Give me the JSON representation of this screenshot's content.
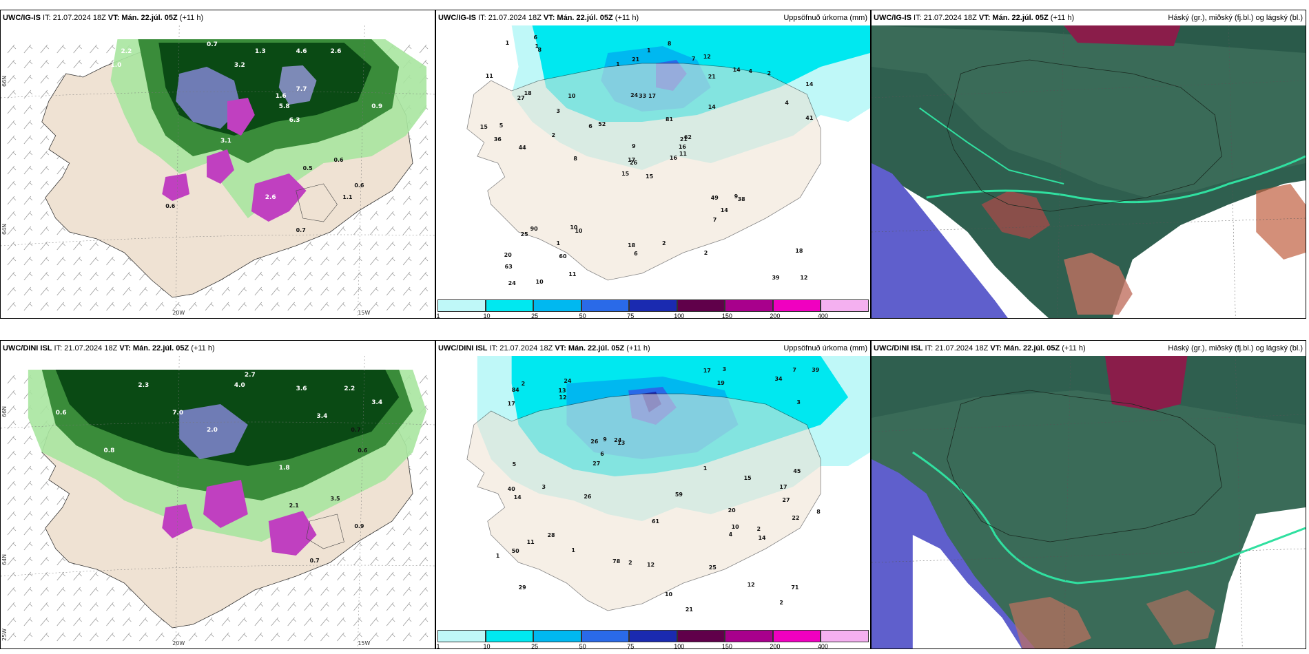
{
  "rows": [
    {
      "model": "UWC/IG-IS",
      "left": {
        "prefix": "UWC/IG-IS",
        "it": " IT: 21.07.2024 18Z ",
        "vt": "VT: Mán. 22.júl. 05Z",
        "lead": " (+11 h)"
      },
      "mid": {
        "prefix": "UWC/IG-IS",
        "it": " IT: 21.07.2024 18Z ",
        "vt": "VT: Mán. 22.júl. 05Z",
        "lead": " (+11 h)",
        "right": "Uppsöfnuð úrkoma (mm)"
      },
      "right": {
        "prefix": "UWC/IG-IS",
        "it": " IT: 21.07.2024 18Z ",
        "vt": "VT: Mán. 22.júl. 05Z",
        "lead": " (+11 h)",
        "right": "Háský (gr.), miðský (fj.bl.) og lágský (bl.)"
      }
    },
    {
      "model": "UWC/DINI ISL",
      "left": {
        "prefix": "UWC/DINI ISL",
        "it": " IT: 21.07.2024 18Z ",
        "vt": "VT: Mán. 22.júl. 05Z",
        "lead": " (+11 h)"
      },
      "mid": {
        "prefix": "UWC/DINI ISL",
        "it": " IT: 21.07.2024 18Z ",
        "vt": "VT: Mán. 22.júl. 05Z",
        "lead": " (+11 h)",
        "right": "Uppsöfnuð úrkoma (mm)"
      },
      "right": {
        "prefix": "UWC/DINI ISL",
        "it": " IT: 21.07.2024 18Z ",
        "vt": "VT: Mán. 22.júl. 05Z",
        "lead": " (+11 h)",
        "right": "Háský (gr.), miðský (fj.bl.) og lágský (bl.)"
      }
    }
  ],
  "axes": {
    "lon1": "20W",
    "lon2": "15W",
    "lat1": "66N",
    "lat2": "64N",
    "lat3": "25W"
  },
  "colorbar": {
    "ticks": [
      "1",
      "10",
      "25",
      "50",
      "75",
      "100",
      "150",
      "200",
      "400"
    ],
    "colors": [
      "#bff8f8",
      "#00e8f0",
      "#00b8f0",
      "#2a6ae8",
      "#1a2ab0",
      "#60004a",
      "#a8008c",
      "#f000c0",
      "#f4b0f0"
    ]
  },
  "precip_labels_top": [
    "15",
    "27",
    "26",
    "20",
    "21",
    "10",
    "12",
    "17",
    "21",
    "16",
    "8",
    "12",
    "44",
    "14",
    "15",
    "14",
    "10",
    "24",
    "81",
    "90",
    "52",
    "63",
    "60",
    "33",
    "62",
    "38",
    "18",
    "21",
    "36",
    "49",
    "41",
    "17",
    "18",
    "9",
    "10",
    "14",
    "10",
    "39",
    "18",
    "9",
    "8",
    "6",
    "2",
    "7",
    "11",
    "15",
    "16",
    "24",
    "6",
    "11",
    "25",
    "4",
    "11",
    "14",
    "2",
    "1",
    "1",
    "1",
    "2",
    "2",
    "1",
    "8",
    "5",
    "3",
    "4",
    "6",
    "7",
    "1"
  ],
  "precip_labels_bottom": [
    "20",
    "27",
    "29",
    "24",
    "13",
    "12",
    "50",
    "19",
    "26",
    "21",
    "17",
    "40",
    "84",
    "71",
    "78",
    "45",
    "61",
    "59",
    "24",
    "28",
    "39",
    "34",
    "27",
    "22",
    "17",
    "13",
    "10",
    "14",
    "12",
    "15",
    "10",
    "25",
    "6",
    "26",
    "17",
    "14",
    "4",
    "3",
    "12",
    "11",
    "3",
    "3",
    "2",
    "2",
    "2",
    "1",
    "1",
    "2",
    "1",
    "5",
    "8",
    "9",
    "7"
  ],
  "wind_labels_top": [
    "2.2",
    "0.7",
    "1.0",
    "3.2",
    "1.3",
    "2.6",
    "4.6",
    "7.7",
    "1.6",
    "5.8",
    "6.3",
    "3.1",
    "0.9",
    "2.6",
    "0.5",
    "0.6",
    "1.1",
    "0.6",
    "0.7",
    "0.6"
  ],
  "wind_labels_bottom": [
    "2.7",
    "4.0",
    "3.6",
    "2.2",
    "2.3",
    "0.6",
    "7.0",
    "3.4",
    "1.8",
    "0.8",
    "2.0",
    "3.4",
    "0.7",
    "0.6",
    "3.5",
    "2.1",
    "0.9",
    "0.7"
  ]
}
